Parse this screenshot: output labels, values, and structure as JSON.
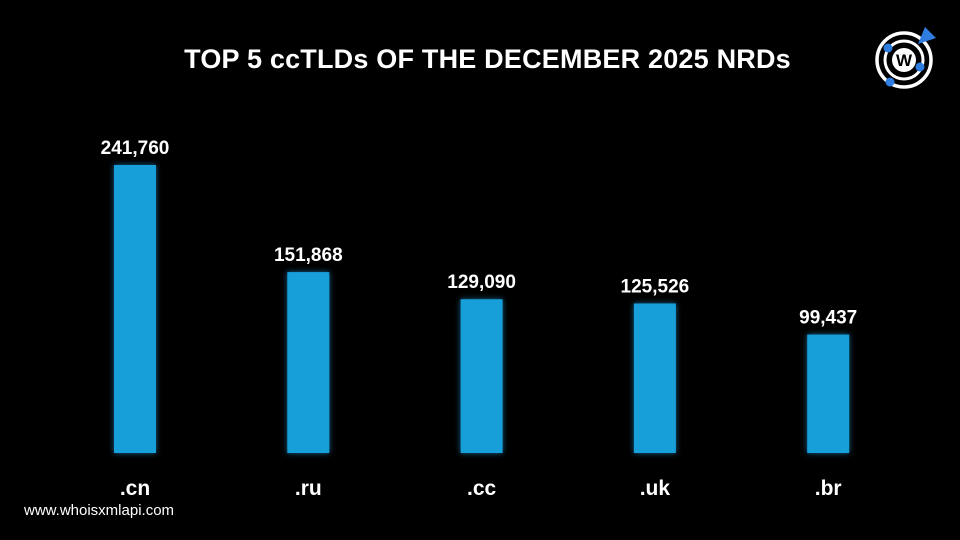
{
  "chart_data": {
    "type": "bar",
    "title": "TOP 5 ccTLDs OF THE DECEMBER 2025 NRDs",
    "categories": [
      ".cn",
      ".ru",
      ".cc",
      ".uk",
      ".br"
    ],
    "values": [
      241760,
      151868,
      129090,
      125526,
      99437
    ],
    "value_labels": [
      "241,760",
      "151,868",
      "129,090",
      "125,526",
      "99,437"
    ],
    "xlabel": "",
    "ylabel": "",
    "ylim": [
      0,
      241760
    ],
    "grid": false,
    "bar_color": "#169fd9"
  },
  "footer": {
    "url": "www.whoisxmlapi.com"
  },
  "logo": {
    "letter": "W",
    "accent": "#2f7de1"
  }
}
